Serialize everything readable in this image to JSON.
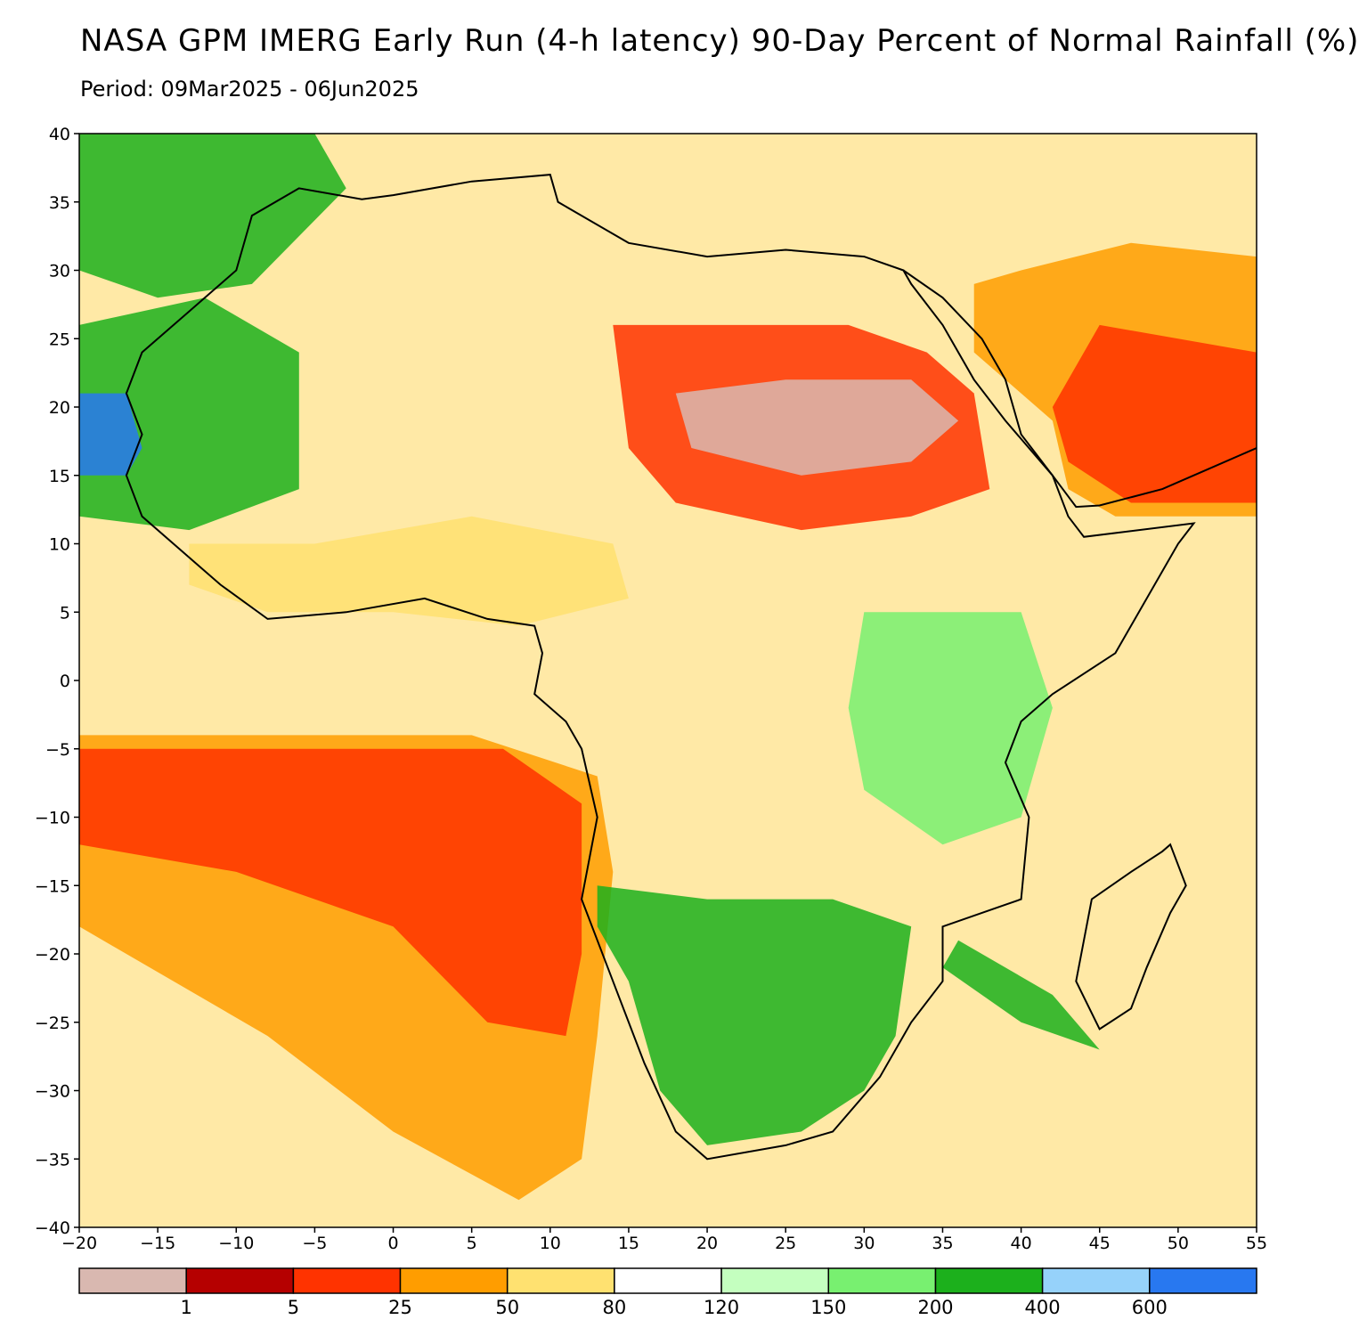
{
  "title": "NASA GPM IMERG Early Run (4-h latency) 90-Day Percent of Normal Rainfall (%)",
  "subtitle": "Period: 09Mar2025 - 06Jun2025",
  "map": {
    "lon_range": [
      -20,
      55
    ],
    "lat_range": [
      -40,
      40
    ],
    "lon_ticks": [
      -20,
      -15,
      -10,
      -5,
      0,
      5,
      10,
      15,
      20,
      25,
      30,
      35,
      40,
      45,
      50,
      55
    ],
    "lat_ticks": [
      40,
      35,
      30,
      25,
      20,
      15,
      10,
      5,
      0,
      -5,
      -10,
      -15,
      -20,
      -25,
      -30,
      -35,
      -40
    ],
    "lon_tick_labels": [
      "−20",
      "−15",
      "−10",
      "−5",
      "0",
      "5",
      "10",
      "15",
      "20",
      "25",
      "30",
      "35",
      "40",
      "45",
      "50",
      "55"
    ],
    "lat_tick_labels": [
      "40",
      "35",
      "30",
      "25",
      "20",
      "15",
      "10",
      "5",
      "0",
      "−5",
      "−10",
      "−15",
      "−20",
      "−25",
      "−30",
      "−35",
      "−40"
    ]
  },
  "colorbar": {
    "colors": [
      "#d9b8b0",
      "#b50000",
      "#ff3300",
      "#ff9d00",
      "#ffe170",
      "#ffffff",
      "#c4ffbf",
      "#78f070",
      "#1cb01c",
      "#96d2fa",
      "#2878f0"
    ],
    "labels": [
      "1",
      "5",
      "25",
      "50",
      "80",
      "120",
      "150",
      "200",
      "400",
      "600"
    ]
  },
  "regions": [
    {
      "name": "sahara-east-dry",
      "color": "#ff3300",
      "points": [
        [
          14,
          26
        ],
        [
          29,
          26
        ],
        [
          34,
          24
        ],
        [
          37,
          21
        ],
        [
          38,
          14
        ],
        [
          33,
          12
        ],
        [
          26,
          11
        ],
        [
          18,
          13
        ],
        [
          15,
          17
        ]
      ]
    },
    {
      "name": "sudan-chad-driest",
      "color": "#d9b8b0",
      "points": [
        [
          18,
          21
        ],
        [
          25,
          22
        ],
        [
          33,
          22
        ],
        [
          36,
          19
        ],
        [
          33,
          16
        ],
        [
          26,
          15
        ],
        [
          19,
          17
        ]
      ]
    },
    {
      "name": "atlantic-south-dry",
      "color": "#ff9d00",
      "points": [
        [
          -20,
          -4
        ],
        [
          -5,
          -4
        ],
        [
          5,
          -4
        ],
        [
          13,
          -7
        ],
        [
          14,
          -14
        ],
        [
          13,
          -26
        ],
        [
          12,
          -35
        ],
        [
          8,
          -38
        ],
        [
          0,
          -33
        ],
        [
          -8,
          -26
        ],
        [
          -20,
          -18
        ]
      ]
    },
    {
      "name": "atlantic-south-core",
      "color": "#ff3300",
      "points": [
        [
          -20,
          -5
        ],
        [
          -5,
          -5
        ],
        [
          7,
          -5
        ],
        [
          12,
          -9
        ],
        [
          12,
          -20
        ],
        [
          11,
          -26
        ],
        [
          6,
          -25
        ],
        [
          0,
          -18
        ],
        [
          -10,
          -14
        ],
        [
          -20,
          -12
        ]
      ]
    },
    {
      "name": "arabia-dry",
      "color": "#ff9d00",
      "points": [
        [
          40,
          30
        ],
        [
          47,
          32
        ],
        [
          55,
          31
        ],
        [
          55,
          12
        ],
        [
          46,
          12
        ],
        [
          43,
          14
        ],
        [
          42,
          19
        ],
        [
          37,
          24
        ],
        [
          37,
          29
        ]
      ]
    },
    {
      "name": "arabia-core",
      "color": "#ff3300",
      "points": [
        [
          45,
          26
        ],
        [
          55,
          24
        ],
        [
          55,
          13
        ],
        [
          47,
          13
        ],
        [
          43,
          16
        ],
        [
          42,
          20
        ]
      ]
    },
    {
      "name": "southern-africa-wet",
      "color": "#1cb01c",
      "points": [
        [
          13,
          -15
        ],
        [
          20,
          -16
        ],
        [
          28,
          -16
        ],
        [
          33,
          -18
        ],
        [
          32,
          -26
        ],
        [
          30,
          -30
        ],
        [
          26,
          -33
        ],
        [
          20,
          -34
        ],
        [
          17,
          -30
        ],
        [
          15,
          -22
        ],
        [
          13,
          -18
        ]
      ]
    },
    {
      "name": "mozambique-channel-wet",
      "color": "#1cb01c",
      "points": [
        [
          36,
          -19
        ],
        [
          42,
          -23
        ],
        [
          45,
          -27
        ],
        [
          40,
          -25
        ],
        [
          35,
          -21
        ]
      ]
    },
    {
      "name": "mauritania-wet",
      "color": "#1cb01c",
      "points": [
        [
          -20,
          26
        ],
        [
          -12,
          28
        ],
        [
          -6,
          24
        ],
        [
          -6,
          14
        ],
        [
          -13,
          11
        ],
        [
          -20,
          12
        ]
      ]
    },
    {
      "name": "atlantic-north-blue",
      "color": "#2878f0",
      "points": [
        [
          -20,
          21
        ],
        [
          -17,
          21
        ],
        [
          -16,
          17
        ],
        [
          -17,
          15
        ],
        [
          -20,
          15
        ]
      ]
    },
    {
      "name": "guinea-coast-yellow",
      "color": "#ffe170",
      "points": [
        [
          -13,
          10
        ],
        [
          -5,
          10
        ],
        [
          5,
          12
        ],
        [
          14,
          10
        ],
        [
          15,
          6
        ],
        [
          8,
          4
        ],
        [
          0,
          5
        ],
        [
          -8,
          5
        ],
        [
          -13,
          7
        ]
      ]
    },
    {
      "name": "morocco-green",
      "color": "#1cb01c",
      "points": [
        [
          -20,
          40
        ],
        [
          -5,
          40
        ],
        [
          -3,
          36
        ],
        [
          -9,
          29
        ],
        [
          -15,
          28
        ],
        [
          -20,
          30
        ]
      ]
    },
    {
      "name": "east-africa-green",
      "color": "#78f070",
      "points": [
        [
          30,
          5
        ],
        [
          40,
          5
        ],
        [
          42,
          -2
        ],
        [
          40,
          -10
        ],
        [
          35,
          -12
        ],
        [
          30,
          -8
        ],
        [
          29,
          -2
        ]
      ]
    }
  ],
  "coastline": [
    [
      -6,
      36
    ],
    [
      -9,
      34
    ],
    [
      -10,
      30
    ],
    [
      -13,
      27
    ],
    [
      -16,
      24
    ],
    [
      -17,
      21
    ],
    [
      -16,
      18
    ],
    [
      -17,
      15
    ],
    [
      -16,
      12
    ],
    [
      -13,
      9
    ],
    [
      -11,
      7
    ],
    [
      -8,
      4.5
    ],
    [
      -3,
      5
    ],
    [
      2,
      6
    ],
    [
      6,
      4.5
    ],
    [
      9,
      4
    ],
    [
      9.5,
      2
    ],
    [
      9,
      -1
    ],
    [
      11,
      -3
    ],
    [
      12,
      -5
    ],
    [
      13,
      -10
    ],
    [
      12,
      -16
    ],
    [
      14,
      -22
    ],
    [
      16,
      -28
    ],
    [
      18,
      -33
    ],
    [
      20,
      -35
    ],
    [
      25,
      -34
    ],
    [
      28,
      -33
    ],
    [
      31,
      -29
    ],
    [
      33,
      -25
    ],
    [
      35,
      -22
    ],
    [
      35,
      -18
    ],
    [
      40,
      -16
    ],
    [
      40.5,
      -10
    ],
    [
      39,
      -6
    ],
    [
      40,
      -3
    ],
    [
      42,
      -1
    ],
    [
      46,
      2
    ],
    [
      50,
      10
    ],
    [
      51,
      11.5
    ],
    [
      44,
      10.5
    ],
    [
      43,
      12
    ],
    [
      42,
      15
    ],
    [
      39,
      19
    ],
    [
      37,
      22
    ],
    [
      35,
      26
    ],
    [
      33,
      29
    ],
    [
      32.5,
      30
    ],
    [
      30,
      31
    ],
    [
      25,
      31.5
    ],
    [
      20,
      31
    ],
    [
      15,
      32
    ],
    [
      10.5,
      35
    ],
    [
      10,
      37
    ],
    [
      5,
      36.5
    ],
    [
      0,
      35.5
    ],
    [
      -2,
      35.2
    ],
    [
      -6,
      36
    ]
  ],
  "madagascar": [
    [
      49.5,
      -12
    ],
    [
      50.5,
      -15
    ],
    [
      49.5,
      -17
    ],
    [
      48,
      -21
    ],
    [
      47,
      -24
    ],
    [
      45,
      -25.5
    ],
    [
      43.5,
      -22
    ],
    [
      44,
      -19
    ],
    [
      44.5,
      -16
    ],
    [
      47,
      -14
    ],
    [
      49,
      -12.5
    ]
  ],
  "arabia_coast": [
    [
      32.5,
      30
    ],
    [
      35,
      28
    ],
    [
      37.5,
      25
    ],
    [
      39,
      22
    ],
    [
      40,
      18
    ],
    [
      42,
      15
    ],
    [
      43.5,
      12.7
    ],
    [
      45,
      12.8
    ],
    [
      49,
      14
    ],
    [
      52,
      15.5
    ],
    [
      55,
      17
    ]
  ]
}
